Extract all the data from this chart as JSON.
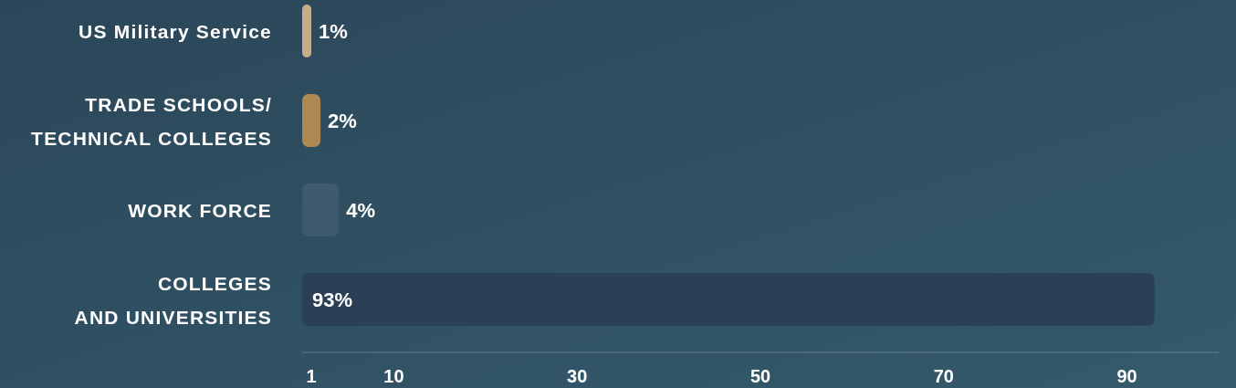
{
  "chart_data": {
    "type": "bar",
    "orientation": "horizontal",
    "categories": [
      "US Military Service",
      "TRADE SCHOOLS/\nTECHNICAL COLLEGES",
      "WORK FORCE",
      "COLLEGES\nAND UNIVERSITIES"
    ],
    "values": [
      1,
      2,
      4,
      93
    ],
    "colors": [
      "#c4ae8a",
      "#ad8a54",
      "#3d5a6e",
      "#2b3f57"
    ],
    "value_labels": [
      "1%",
      "2%",
      "4%",
      "93%"
    ],
    "xlim": [
      0,
      100
    ],
    "xticks": [
      1,
      10,
      30,
      50,
      70,
      90
    ]
  }
}
